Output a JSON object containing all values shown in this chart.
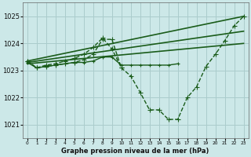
{
  "background_color": "#cce8e8",
  "grid_color": "#aacccc",
  "line_color": "#1a5c1a",
  "title": "Graphe pression niveau de la mer (hPa)",
  "xlabel_ticks": [
    0,
    1,
    2,
    3,
    4,
    5,
    6,
    7,
    8,
    9,
    10,
    11,
    12,
    13,
    14,
    15,
    16,
    17,
    18,
    19,
    20,
    21,
    22,
    23
  ],
  "yticks": [
    1021,
    1022,
    1023,
    1024,
    1025
  ],
  "ylim": [
    1020.5,
    1025.5
  ],
  "xlim": [
    -0.5,
    23.5
  ],
  "lines": [
    {
      "x": [
        0,
        1,
        2,
        3,
        4,
        5,
        6,
        7,
        8,
        9,
        10,
        11,
        12,
        13,
        14,
        15,
        16,
        17,
        18,
        19,
        20,
        21,
        22,
        23
      ],
      "y": [
        1023.35,
        1023.1,
        1023.15,
        1023.2,
        1023.25,
        1023.3,
        1023.4,
        1023.6,
        1024.15,
        1024.15,
        1023.1,
        1022.8,
        1022.2,
        1021.55,
        1021.55,
        1021.2,
        1021.2,
        1022.0,
        1022.4,
        1023.15,
        1023.6,
        1024.1,
        1024.65,
        1025.0
      ],
      "marker": "+",
      "markersize": 4,
      "linewidth": 1.0,
      "linestyle": "--"
    },
    {
      "x": [
        0,
        23
      ],
      "y": [
        1023.35,
        1025.0
      ],
      "marker": "none",
      "markersize": 0,
      "linewidth": 1.2,
      "linestyle": "-"
    },
    {
      "x": [
        0,
        23
      ],
      "y": [
        1023.3,
        1024.45
      ],
      "marker": "none",
      "markersize": 0,
      "linewidth": 1.2,
      "linestyle": "-"
    },
    {
      "x": [
        0,
        23
      ],
      "y": [
        1023.25,
        1024.0
      ],
      "marker": "none",
      "markersize": 0,
      "linewidth": 1.2,
      "linestyle": "-"
    },
    {
      "x": [
        0,
        1,
        2,
        3,
        4,
        5,
        6,
        7,
        8,
        9,
        10
      ],
      "y": [
        1023.35,
        1023.1,
        1023.2,
        1023.25,
        1023.35,
        1023.45,
        1023.6,
        1023.85,
        1024.2,
        1023.8,
        1023.1
      ],
      "marker": "+",
      "markersize": 4,
      "linewidth": 1.0,
      "linestyle": "--"
    },
    {
      "x": [
        0,
        1,
        2,
        3,
        4,
        5,
        6,
        7,
        8,
        9,
        10,
        11,
        12,
        13,
        14,
        15,
        16
      ],
      "y": [
        1023.3,
        1023.1,
        1023.15,
        1023.2,
        1023.25,
        1023.3,
        1023.3,
        1023.35,
        1023.5,
        1023.5,
        1023.2,
        1023.2,
        1023.2,
        1023.2,
        1023.2,
        1023.2,
        1023.25
      ],
      "marker": "+",
      "markersize": 3,
      "linewidth": 1.0,
      "linestyle": "-"
    }
  ]
}
